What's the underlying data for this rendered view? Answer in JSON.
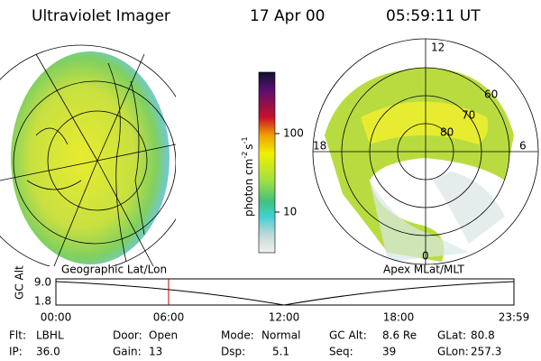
{
  "header": {
    "title": "Ultraviolet Imager",
    "date": "17 Apr 00",
    "time": "05:59:11 UT"
  },
  "colorbar": {
    "unit": "photon cm",
    "exp1": "-2",
    "unit2": "s",
    "exp2": "-1",
    "ticks": [
      "100",
      "10"
    ]
  },
  "polar": {
    "mlt_labels": [
      "12",
      "18",
      "6",
      "0"
    ],
    "lat_labels": [
      "60",
      "70",
      "80"
    ]
  },
  "panels": {
    "left": "Geographic Lat/Lon",
    "right": "Apex MLat/MLT"
  },
  "altitude": {
    "ylabel": "GC Alt",
    "yticks": [
      "9.0",
      "1.8"
    ],
    "xticks": [
      "00:00",
      "06:00",
      "12:00",
      "18:00",
      "23:59"
    ]
  },
  "status": [
    [
      {
        "label": "Flt:",
        "value": "LBHL"
      },
      {
        "label": "Door:",
        "value": "Open"
      },
      {
        "label": "Mode:",
        "value": "Normal"
      },
      {
        "label": "GC Alt:",
        "value": "8.6 Re"
      },
      {
        "label": "GLat:",
        "value": "80.8"
      }
    ],
    [
      {
        "label": "IP:",
        "value": "36.0"
      },
      {
        "label": "Gain:",
        "value": "13"
      },
      {
        "label": "Dsp:",
        "value": "5.1"
      },
      {
        "label": "Seq:",
        "value": "39"
      },
      {
        "label": "GLon:",
        "value": "257.3"
      }
    ]
  ]
}
